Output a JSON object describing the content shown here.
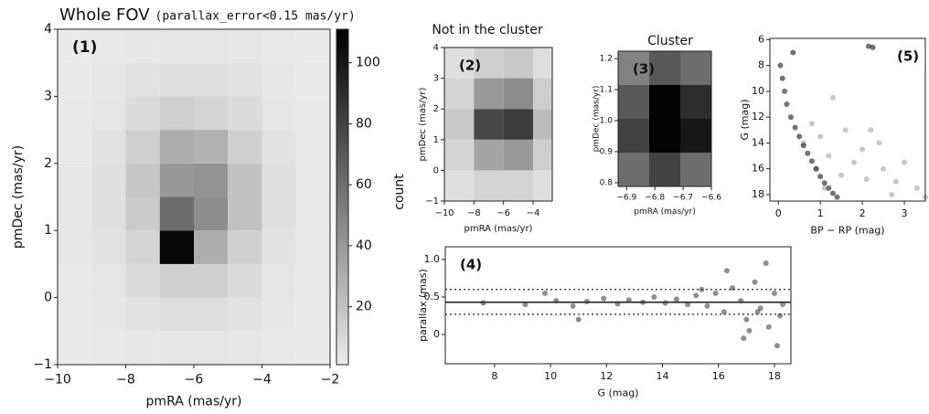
{
  "chart_data": [
    {
      "type": "heatmap",
      "title": "Whole FOV",
      "subtitle": "(parallax_error<0.15 mas/yr)",
      "label": "(1)",
      "x_label": "pmRA (mas/yr)",
      "y_label": "pmDec (mas/yr)",
      "xbins": [
        -10,
        -9,
        -8,
        -7,
        -6,
        -5,
        -4,
        -3,
        -2
      ],
      "ybins": [
        -1,
        -0.5,
        0,
        0.5,
        1,
        1.5,
        2,
        2.5,
        3,
        3.5,
        4
      ],
      "values": [
        [
          1,
          2,
          3,
          4,
          4,
          3,
          2,
          1
        ],
        [
          2,
          3,
          5,
          7,
          7,
          5,
          3,
          1
        ],
        [
          2,
          4,
          8,
          14,
          14,
          9,
          4,
          2
        ],
        [
          3,
          5,
          12,
          108,
          30,
          14,
          5,
          2
        ],
        [
          3,
          6,
          16,
          60,
          45,
          20,
          6,
          2
        ],
        [
          3,
          6,
          18,
          40,
          42,
          20,
          6,
          2
        ],
        [
          2,
          5,
          14,
          30,
          28,
          14,
          5,
          2
        ],
        [
          2,
          4,
          8,
          14,
          12,
          8,
          4,
          1
        ],
        [
          1,
          3,
          5,
          6,
          6,
          5,
          3,
          1
        ],
        [
          1,
          2,
          3,
          4,
          4,
          3,
          2,
          1
        ]
      ],
      "xlim": [
        -10,
        -2
      ],
      "ylim": [
        -1,
        4
      ],
      "xticks": [
        {
          "value": -10,
          "label": "−10"
        },
        {
          "value": -8,
          "label": "−8"
        },
        {
          "value": -6,
          "label": "−6"
        },
        {
          "value": -4,
          "label": "−4"
        },
        {
          "value": -2,
          "label": "−2"
        }
      ],
      "yticks": [
        {
          "value": -1,
          "label": "−1"
        },
        0,
        1,
        2,
        3,
        4
      ],
      "clim": [
        1,
        111
      ],
      "cticks": [
        20,
        40,
        60,
        80,
        100
      ],
      "clabel": "count"
    },
    {
      "type": "heatmap",
      "title": "Not in the cluster",
      "label": "(2)",
      "x_label": "pmRA (mas/yr)",
      "y_label": "pmDec (mas/yr)",
      "xbins": [
        -10,
        -8,
        -6,
        -4,
        -2.7
      ],
      "ybins": [
        -1,
        0,
        1,
        2,
        3,
        4
      ],
      "values": [
        [
          2,
          4,
          4,
          2
        ],
        [
          4,
          12,
          14,
          5
        ],
        [
          6,
          28,
          30,
          8
        ],
        [
          4,
          14,
          16,
          5
        ],
        [
          2,
          5,
          6,
          2
        ]
      ],
      "xlim": [
        -10,
        -2.7
      ],
      "ylim": [
        -1,
        4
      ],
      "xticks": [
        {
          "value": -10,
          "label": "−10"
        },
        {
          "value": -8,
          "label": "−8"
        },
        {
          "value": -6,
          "label": "−6"
        },
        {
          "value": -4,
          "label": "−4"
        }
      ],
      "yticks": [
        {
          "value": -1,
          "label": "−1"
        },
        0,
        1,
        2,
        3,
        4
      ],
      "clim": [
        0,
        40
      ]
    },
    {
      "type": "heatmap",
      "title": "Cluster",
      "label": "(3)",
      "x_label": "pmRA (mas/yr)",
      "y_label": "pmDec (mas/yr)",
      "xbins": [
        -6.93,
        -6.82,
        -6.71,
        -6.6
      ],
      "ybins": [
        0.788,
        0.897,
        1.006,
        1.115,
        1.224
      ],
      "values": [
        [
          60,
          80,
          60
        ],
        [
          80,
          110,
          100
        ],
        [
          70,
          110,
          90
        ],
        [
          50,
          70,
          60
        ]
      ],
      "xlim": [
        -6.93,
        -6.6
      ],
      "ylim": [
        0.788,
        1.224
      ],
      "xticks": [
        {
          "value": -6.9,
          "label": "−6.9"
        },
        {
          "value": -6.8,
          "label": "−6.8"
        },
        {
          "value": -6.7,
          "label": "−6.7"
        },
        {
          "value": -6.6,
          "label": "−6.6"
        }
      ],
      "yticks": [
        0.8,
        0.9,
        {
          "value": 1,
          "label": "1.0"
        },
        1.1,
        1.2
      ],
      "clim": [
        1,
        111
      ]
    },
    {
      "type": "scatter",
      "label": "(4)",
      "x_label": "G (mag)",
      "y_label": "parallax (mas)",
      "series": [
        {
          "color": "#333333",
          "x": [
            7.6,
            9.1,
            10.2,
            10.8,
            11.3,
            11.9,
            12.4,
            12.8,
            13.3,
            13.7,
            14.1,
            14.5,
            14.9,
            15.2,
            15.6,
            15.9,
            16.2,
            16.5,
            16.8,
            17.0,
            17.3,
            17.5,
            17.8,
            18.0,
            18.2,
            18.3,
            16.3,
            17.1,
            17.7,
            18.1,
            15.4,
            16.9,
            17.4,
            11.0,
            9.8
          ],
          "values": [
            0.42,
            0.4,
            0.45,
            0.38,
            0.44,
            0.48,
            0.41,
            0.46,
            0.43,
            0.5,
            0.42,
            0.47,
            0.4,
            0.52,
            0.38,
            0.55,
            0.3,
            0.62,
            0.45,
            0.2,
            0.7,
            0.35,
            0.1,
            0.55,
            0.25,
            0.4,
            0.85,
            0.05,
            0.95,
            -0.15,
            0.6,
            -0.05,
            0.3,
            0.2,
            0.55
          ]
        }
      ],
      "hlines": [
        0.6,
        0.43,
        0.27
      ],
      "hline_styles": [
        "dotted",
        "solid",
        "dotted"
      ],
      "xlim": [
        6.24,
        18.59
      ],
      "ylim": [
        -0.39,
        1.17
      ],
      "xticks": [
        8,
        10,
        12,
        14,
        16,
        18
      ],
      "yticks": [
        0,
        0.5,
        {
          "value": 1,
          "label": "1.0"
        }
      ]
    },
    {
      "type": "scatter",
      "label": "(5)",
      "x_label": "BP − RP (mag)",
      "y_label": "G (mag)",
      "series": [
        {
          "color": "#9a9a9a",
          "x": [
            0.6,
            0.8,
            1.0,
            1.2,
            1.5,
            1.8,
            2.0,
            2.2,
            2.5,
            2.8,
            3.0,
            3.3,
            1.1,
            1.6,
            2.1,
            2.4,
            2.7,
            1.3,
            0.9,
            3.5
          ],
          "values": [
            14.0,
            12.5,
            13.5,
            15.0,
            16.5,
            15.5,
            14.5,
            13.0,
            16.0,
            17.0,
            15.5,
            17.5,
            17.5,
            13.0,
            16.8,
            14.0,
            18.0,
            10.5,
            16.0,
            18.2
          ]
        },
        {
          "color": "#000000",
          "x": [
            0.05,
            0.1,
            0.15,
            0.2,
            0.3,
            0.4,
            0.5,
            0.6,
            0.7,
            0.8,
            0.9,
            1.0,
            1.1,
            1.2,
            1.3,
            1.4,
            0.35,
            2.15,
            2.25
          ],
          "values": [
            8.0,
            9.0,
            10.0,
            11.0,
            12.0,
            12.8,
            13.5,
            14.2,
            14.8,
            15.4,
            16.0,
            16.6,
            17.1,
            17.5,
            17.9,
            18.2,
            7.0,
            6.5,
            6.6
          ]
        }
      ],
      "xlim": [
        -0.2,
        3.5
      ],
      "ylim": [
        18.5,
        5.9
      ],
      "xticks": [
        0,
        1,
        2,
        3
      ],
      "yticks": [
        6,
        8,
        10,
        12,
        14,
        16,
        18
      ]
    }
  ]
}
